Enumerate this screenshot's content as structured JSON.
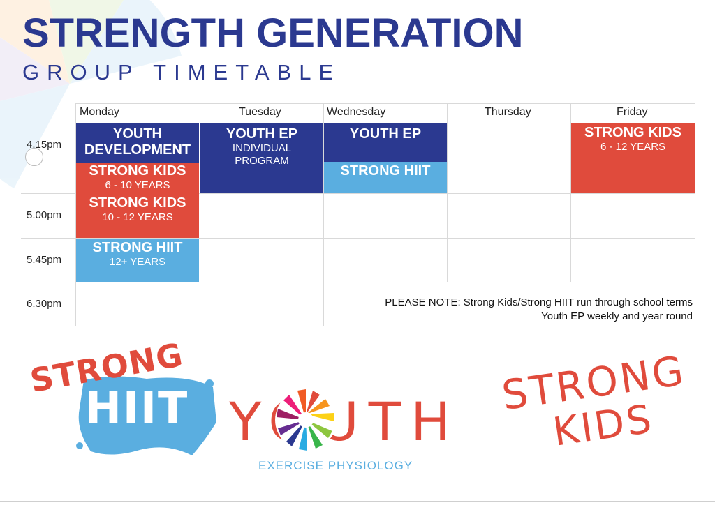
{
  "header": {
    "title": "STRENGTH GENERATION",
    "subtitle": "GROUP TIMETABLE"
  },
  "timetable": {
    "days": [
      "Monday",
      "Tuesday",
      "Wednesday",
      "Thursday",
      "Friday"
    ],
    "times": [
      "4.15pm",
      "5.00pm",
      "5.45pm",
      "6.30pm"
    ],
    "sessions": {
      "mon_youth_dev": {
        "title": "YOUTH DEVELOPMENT"
      },
      "mon_strong_kids_1": {
        "title": "STRONG KIDS",
        "sub": "6 - 10 YEARS"
      },
      "mon_strong_kids_2": {
        "title": "STRONG KIDS",
        "sub": "10 - 12 YEARS"
      },
      "mon_strong_hiit": {
        "title": "STRONG HIIT",
        "sub": "12+ YEARS"
      },
      "tue_youth_ep": {
        "title": "YOUTH EP",
        "sub": "INDIVIDUAL PROGRAM"
      },
      "wed_youth_ep": {
        "title": "YOUTH EP"
      },
      "wed_strong_hiit": {
        "title": "STRONG HIIT"
      },
      "fri_strong_kids": {
        "title": "STRONG KIDS",
        "sub": "6 - 12 YEARS"
      }
    }
  },
  "note": {
    "line1": "PLEASE NOTE: Strong Kids/Strong HIIT run through school terms",
    "line2": "Youth EP weekly and year round"
  },
  "logos": {
    "hiit_word1": "STRONG",
    "hiit_word2": "HIIT",
    "youth_word": "YOUTH",
    "youth_sub": "EXERCISE PHYSIOLOGY",
    "kids_word1": "STRONG",
    "kids_word2": "KIDS"
  },
  "colors": {
    "navy": "#2b3990",
    "red": "#e04b3c",
    "blue": "#5aaee0"
  }
}
